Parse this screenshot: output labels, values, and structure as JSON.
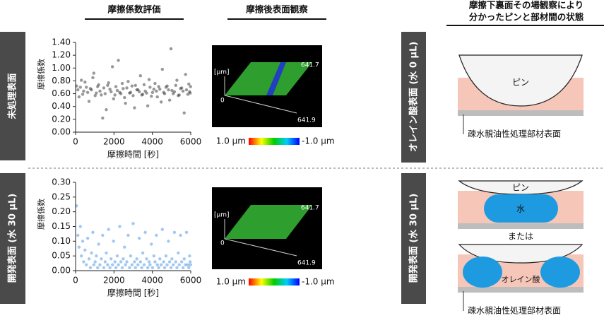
{
  "chart_data": [
    {
      "type": "scatter",
      "xlabel": "摩擦時間 [秒]",
      "ylabel": "摩擦係数",
      "color": "#1a1a1a",
      "x": [
        50,
        120,
        180,
        250,
        300,
        370,
        420,
        490,
        560,
        630,
        700,
        770,
        830,
        900,
        950,
        1020,
        1080,
        1150,
        1200,
        1270,
        1340,
        1410,
        1470,
        1540,
        1600,
        1670,
        1720,
        1790,
        1850,
        1920,
        1980,
        2050,
        2100,
        2170,
        2230,
        2300,
        2360,
        2430,
        2480,
        2550,
        2600,
        2670,
        2740,
        2810,
        2870,
        2940,
        3000,
        3070,
        3120,
        3190,
        3250,
        3320,
        3380,
        3450,
        3500,
        3570,
        3630,
        3700,
        3760,
        3830,
        3880,
        3950,
        4010,
        4080,
        4140,
        4210,
        4260,
        4330,
        4390,
        4460,
        4520,
        4590,
        4640,
        4710,
        4770,
        4840,
        4900,
        4970,
        5020,
        5090,
        5150,
        5220,
        5280,
        5350,
        5400,
        5470,
        5530,
        5600,
        5660,
        5730,
        5780,
        5850,
        5900,
        5940,
        5970,
        5990
      ],
      "values": [
        0.72,
        0.66,
        0.55,
        0.7,
        0.81,
        0.59,
        0.64,
        0.78,
        0.7,
        0.62,
        0.48,
        0.68,
        0.66,
        0.85,
        0.92,
        0.57,
        0.61,
        0.71,
        0.74,
        0.64,
        0.58,
        0.22,
        0.69,
        0.6,
        0.35,
        0.73,
        0.77,
        0.67,
        0.63,
        1.02,
        0.52,
        0.58,
        0.71,
        0.65,
        1.12,
        0.62,
        0.6,
        0.76,
        0.68,
        0.54,
        0.45,
        0.69,
        0.79,
        0.61,
        0.62,
        0.72,
        0.57,
        0.38,
        0.73,
        0.66,
        0.66,
        0.63,
        0.88,
        0.58,
        0.59,
        0.74,
        0.64,
        0.61,
        0.41,
        0.82,
        0.7,
        0.56,
        0.62,
        0.67,
        0.76,
        0.64,
        0.55,
        0.71,
        0.67,
        0.47,
        0.98,
        0.62,
        0.6,
        0.7,
        0.72,
        0.66,
        0.5,
        1.3,
        0.65,
        0.6,
        0.63,
        0.73,
        0.81,
        0.57,
        0.58,
        0.68,
        0.69,
        0.64,
        0.3,
        0.9,
        0.66,
        0.59,
        0.75,
        0.63,
        0.61,
        0.71
      ],
      "xlim": [
        0,
        6000
      ],
      "xticks": [
        0,
        2000,
        4000,
        6000
      ],
      "ylim": [
        0,
        1.4
      ],
      "yticks": [
        {
          "value": 0,
          "label": "0.00"
        },
        {
          "value": 0.2,
          "label": "0.20"
        },
        {
          "value": 0.4,
          "label": "0.40"
        },
        {
          "value": 0.6,
          "label": "0.60"
        },
        {
          "value": 0.8,
          "label": "0.80"
        },
        {
          "value": 1.0,
          "label": "1.00"
        },
        {
          "value": 1.2,
          "label": "1.20"
        },
        {
          "value": 1.4,
          "label": "1.40"
        }
      ]
    },
    {
      "type": "scatter",
      "xlabel": "摩擦時間 [秒]",
      "ylabel": "摩擦係数",
      "color": "#2f86e0",
      "x": [
        50,
        120,
        180,
        250,
        300,
        370,
        420,
        490,
        560,
        630,
        700,
        770,
        830,
        900,
        950,
        1020,
        1080,
        1150,
        1200,
        1270,
        1340,
        1410,
        1470,
        1540,
        1600,
        1670,
        1720,
        1790,
        1850,
        1920,
        1980,
        2050,
        2100,
        2170,
        2230,
        2300,
        2360,
        2430,
        2480,
        2550,
        2600,
        2670,
        2740,
        2810,
        2870,
        2940,
        3000,
        3070,
        3120,
        3190,
        3250,
        3320,
        3380,
        3450,
        3500,
        3570,
        3630,
        3700,
        3760,
        3830,
        3880,
        3950,
        4010,
        4080,
        4140,
        4210,
        4260,
        4330,
        4390,
        4460,
        4520,
        4590,
        4640,
        4710,
        4770,
        4840,
        4900,
        4970,
        5020,
        5090,
        5150,
        5220,
        5280,
        5350,
        5400,
        5470,
        5530,
        5600,
        5660,
        5730,
        5780,
        5850,
        5900,
        5940,
        5970,
        5990
      ],
      "values": [
        0.22,
        0.12,
        0.08,
        0.15,
        0.05,
        0.1,
        0.03,
        0.07,
        0.02,
        0.11,
        0.04,
        0.01,
        0.06,
        0.13,
        0.02,
        0.03,
        0.05,
        0.01,
        0.09,
        0.02,
        0.04,
        0.12,
        0.01,
        0.03,
        0.06,
        0.02,
        0.14,
        0.01,
        0.04,
        0.02,
        0.1,
        0.03,
        0.01,
        0.05,
        0.02,
        0.15,
        0.03,
        0.01,
        0.04,
        0.08,
        0.02,
        0.03,
        0.12,
        0.01,
        0.05,
        0.02,
        0.16,
        0.03,
        0.01,
        0.04,
        0.02,
        0.11,
        0.03,
        0.01,
        0.06,
        0.02,
        0.13,
        0.04,
        0.01,
        0.03,
        0.02,
        0.09,
        0.01,
        0.05,
        0.03,
        0.12,
        0.02,
        0.01,
        0.04,
        0.02,
        0.14,
        0.03,
        0.01,
        0.05,
        0.02,
        0.1,
        0.03,
        0.01,
        0.04,
        0.02,
        0.13,
        0.03,
        0.01,
        0.06,
        0.02,
        0.12,
        0.03,
        0.01,
        0.04,
        0.02,
        0.13,
        0.02,
        0.01,
        0.05,
        0.03,
        0.02
      ],
      "xlim": [
        0,
        6000
      ],
      "xticks": [
        0,
        2000,
        4000,
        6000
      ],
      "ylim": [
        0,
        0.3
      ],
      "yticks": [
        {
          "value": 0,
          "label": "0.00"
        },
        {
          "value": 0.05,
          "label": "0.05"
        },
        {
          "value": 0.1,
          "label": "0.10"
        },
        {
          "value": 0.15,
          "label": "0.15"
        },
        {
          "value": 0.2,
          "label": "0.20"
        },
        {
          "value": 0.25,
          "label": "0.25"
        },
        {
          "value": 0.3,
          "label": "0.30"
        }
      ]
    }
  ],
  "headers": {
    "friction": "摩擦係数評価",
    "surface": "摩擦後表面観察",
    "observation": [
      "摩擦下裏面その場観察により",
      "分かったピンと部材間の状態"
    ]
  },
  "rows": [
    {
      "label": "未処理表面",
      "image": {
        "z_unit": "[μm]",
        "z0": "0",
        "x_extent": "641.7",
        "y_extent": "641.9",
        "scale_max": "1.0 μm",
        "scale_min": "-1.0 μm"
      }
    },
    {
      "label": "開発表面 (水 30 μL)",
      "image": {
        "z_unit": "[μm]",
        "z0": "0",
        "x_extent": "641.7",
        "y_extent": "641.9",
        "scale_max": "1.0 μm",
        "scale_min": "-1.0 μm"
      }
    }
  ],
  "diagrams": [
    {
      "label": "オレイン酸表面 (水 0 μL)",
      "pin": "ピン",
      "surface": "疎水親油性処理部材表面"
    },
    {
      "label": "開発表面 (水 30 μL)",
      "pin": "ピン",
      "water": "水",
      "or": "または",
      "pin2": "ピン",
      "oil": "オレイン酸",
      "surface": "疎水親油性処理部材表面"
    }
  ]
}
